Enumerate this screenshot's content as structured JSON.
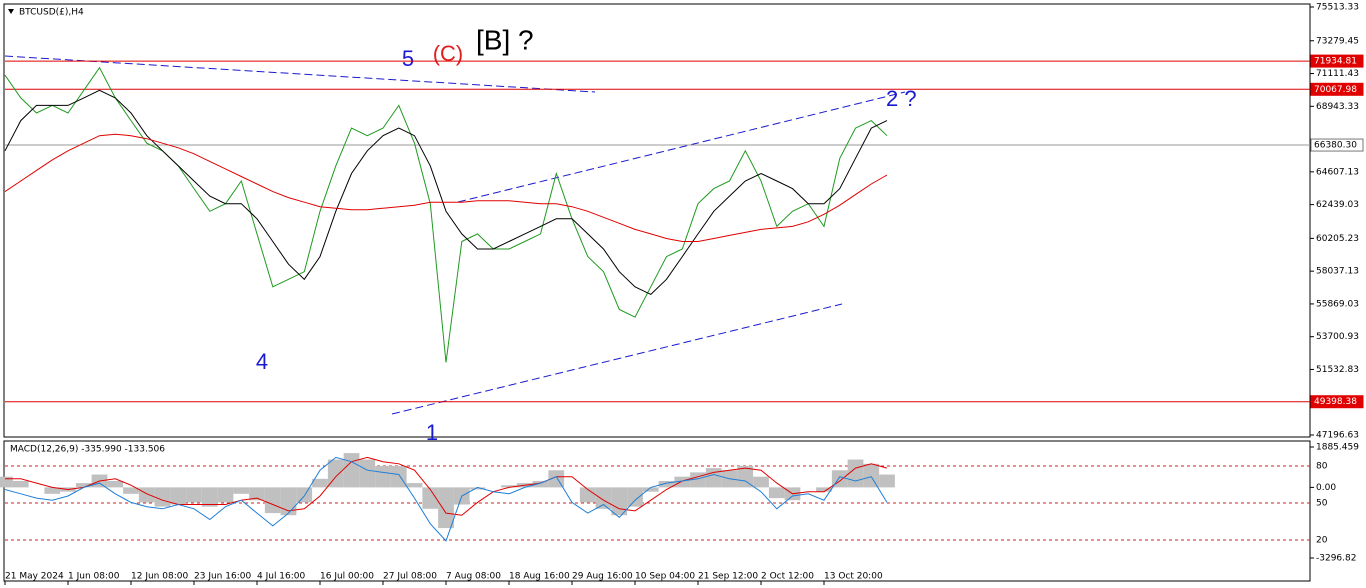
{
  "window_title": "BTCUSD(£),H4",
  "annotations": [
    "5",
    "(C)",
    "[B] ?",
    "4",
    "1",
    "2 ?"
  ],
  "chart_data": [
    {
      "type": "line",
      "categories": [
        "21 May 2024",
        null,
        null,
        null,
        "1 Jun 08:00",
        null,
        null,
        null,
        "12 Jun 08:00",
        null,
        null,
        null,
        "23 Jun 16:00",
        null,
        null,
        null,
        "4 Jul 16:00",
        null,
        null,
        null,
        "16 Jul 00:00",
        null,
        null,
        null,
        "27 Jul 08:00",
        null,
        null,
        null,
        "7 Aug 08:00",
        null,
        null,
        null,
        "18 Aug 16:00",
        null,
        null,
        null,
        "29 Aug 16:00",
        null,
        null,
        null,
        "10 Sep 04:00",
        null,
        null,
        null,
        "21 Sep 12:00",
        null,
        null,
        null,
        "2 Oct 12:00",
        null,
        null,
        null,
        "13 Oct 20:00",
        null,
        null,
        null,
        null
      ],
      "series": [
        {
          "color": "#1f9a1f",
          "values": [
            71000,
            69500,
            68500,
            69000,
            68500,
            70000,
            71500,
            69500,
            68000,
            66500,
            66000,
            65000,
            63500,
            62000,
            62500,
            64000,
            60500,
            57000,
            57500,
            58000,
            62000,
            65000,
            67500,
            67000,
            67500,
            69000,
            66500,
            62500,
            52000,
            60000,
            60500,
            59500,
            59500,
            60000,
            60500,
            64500,
            61500,
            59000,
            58000,
            55500,
            55000,
            57000,
            59000,
            59500,
            62500,
            63500,
            64000,
            66000,
            64000,
            61000,
            62000,
            62500,
            61000,
            65500,
            67500,
            68000,
            67000
          ]
        },
        {
          "color": "#000000",
          "values": [
            66000,
            68000,
            69000,
            69000,
            69000,
            69500,
            70000,
            69500,
            68500,
            67000,
            66000,
            65000,
            64000,
            63000,
            62500,
            62500,
            61500,
            60000,
            58500,
            57500,
            59000,
            62000,
            64500,
            66000,
            67000,
            67500,
            67000,
            65000,
            62000,
            60500,
            59500,
            59500,
            60000,
            60500,
            61000,
            61500,
            61500,
            60500,
            59500,
            58000,
            57000,
            56500,
            57500,
            59000,
            60500,
            62000,
            63000,
            64000,
            64500,
            64000,
            63500,
            62500,
            62500,
            63500,
            65500,
            67500,
            68000
          ]
        },
        {
          "color": "#e00000",
          "values": [
            63300,
            64000,
            64700,
            65400,
            66000,
            66500,
            67000,
            67100,
            67000,
            66800,
            66500,
            66200,
            65800,
            65300,
            64800,
            64300,
            63800,
            63300,
            62900,
            62600,
            62300,
            62200,
            62100,
            62100,
            62200,
            62300,
            62400,
            62600,
            62600,
            62600,
            62700,
            62700,
            62700,
            62600,
            62500,
            62500,
            62300,
            62000,
            61600,
            61200,
            60800,
            60500,
            60200,
            60000,
            60000,
            60200,
            60400,
            60600,
            60800,
            60900,
            61000,
            61300,
            61800,
            62400,
            63100,
            63800,
            64400
          ]
        }
      ],
      "ylim": [
        47196.63,
        75513.33
      ],
      "yticks": [
        75513.33,
        73279.45,
        71111.43,
        68943.33,
        64607.13,
        62439.03,
        60205.23,
        58037.13,
        55869.03,
        53700.93,
        51532.83,
        47196.63
      ],
      "levels": [
        {
          "value": 71934.81,
          "color": "#e00000"
        },
        {
          "value": 70067.98,
          "color": "#e00000"
        },
        {
          "value": {
            "value": 66380.3,
            "label": "66380.30"
          },
          "color": "#9a9a9a"
        },
        {
          "value": 49398.38,
          "color": "#e00000"
        }
      ]
    },
    {
      "type": "macd",
      "title": "MACD(12,26,9) -335.990 -133.506",
      "ylim": [
        -3296.82,
        1885.459
      ],
      "yticks": [
        1885.459,
        {
          "value": 0,
          "label": "0.00"
        },
        -3296.82
      ],
      "level_labels": [
        "80",
        "50",
        "20"
      ],
      "series": [
        {
          "color": "#c0c0c0",
          "values": [
            500,
            300,
            0,
            -300,
            -200,
            200,
            600,
            300,
            -300,
            -700,
            -900,
            -800,
            -700,
            -900,
            -700,
            -300,
            -600,
            -1200,
            -1300,
            -700,
            400,
            1300,
            1600,
            1300,
            1000,
            1000,
            200,
            -1000,
            -1900,
            -800,
            -100,
            0,
            100,
            200,
            300,
            800,
            0,
            -700,
            -1000,
            -1300,
            -900,
            -200,
            300,
            500,
            700,
            900,
            800,
            1000,
            500,
            -500,
            -600,
            0,
            -200,
            800,
            1300,
            1100,
            600
          ]
        },
        {
          "color": "#e00000",
          "values": [
            400,
            400,
            200,
            0,
            -100,
            0,
            300,
            400,
            100,
            -300,
            -600,
            -800,
            -800,
            -800,
            -800,
            -600,
            -500,
            -800,
            -1100,
            -1000,
            -400,
            500,
            1200,
            1400,
            1200,
            1100,
            800,
            -100,
            -1200,
            -1300,
            -700,
            -200,
            0,
            100,
            200,
            500,
            500,
            -100,
            -600,
            -1000,
            -1100,
            -600,
            -100,
            300,
            500,
            700,
            800,
            900,
            800,
            200,
            -300,
            -200,
            -200,
            300,
            900,
            1100,
            900
          ]
        },
        {
          "color": "#1e7fd8",
          "values": [
            -100,
            -300,
            -500,
            -600,
            -400,
            0,
            200,
            -300,
            -700,
            -900,
            -1000,
            -800,
            -1000,
            -1500,
            -900,
            -600,
            -1200,
            -1800,
            -1200,
            -400,
            800,
            1400,
            1200,
            800,
            700,
            600,
            -500,
            -1700,
            -2500,
            -400,
            0,
            -200,
            -300,
            0,
            200,
            500,
            -700,
            -1200,
            -800,
            -1400,
            -600,
            0,
            200,
            300,
            400,
            600,
            400,
            300,
            -200,
            -1000,
            -400,
            -300,
            -600,
            500,
            300,
            500,
            -700
          ]
        }
      ]
    }
  ]
}
